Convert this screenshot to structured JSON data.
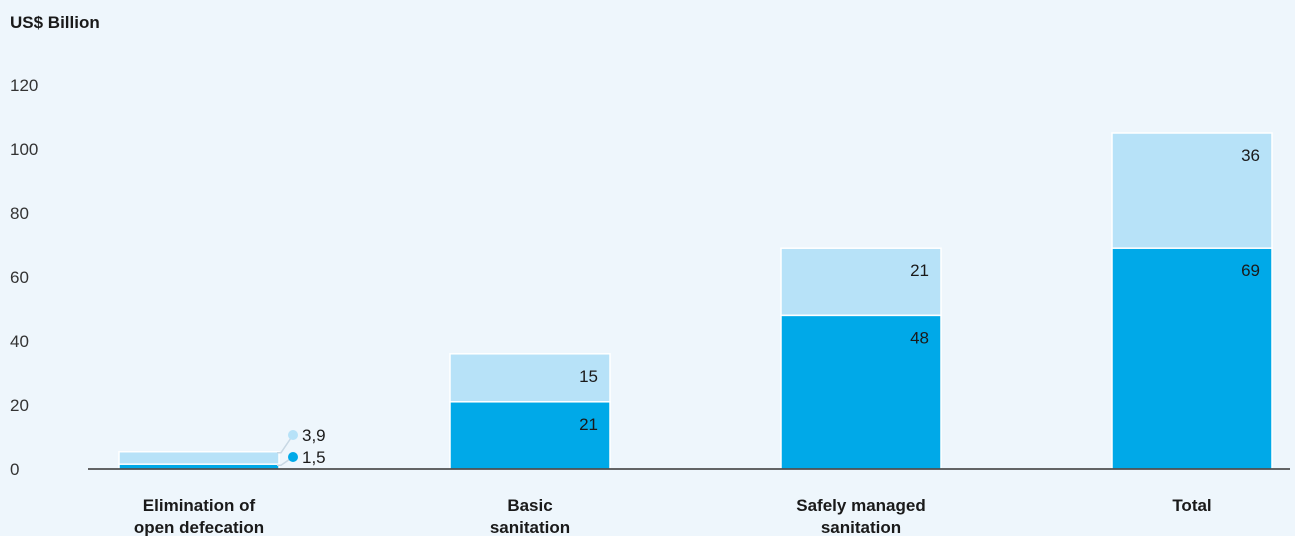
{
  "chart_data": {
    "type": "bar",
    "stacked": true,
    "unit_label": "US$ Billion",
    "categories": [
      [
        "Elimination of",
        "open defecation"
      ],
      [
        "Basic",
        "sanitation"
      ],
      [
        "Safely managed",
        "sanitation"
      ],
      [
        "Total"
      ]
    ],
    "series": [
      {
        "value_labels": [
          "1,5",
          "21",
          "48",
          "69"
        ],
        "values": [
          1.5,
          21,
          48,
          69
        ],
        "color": "#00a9e8"
      },
      {
        "value_labels": [
          "3,9",
          "15",
          "21",
          "36"
        ],
        "values": [
          3.9,
          15,
          21,
          36
        ],
        "color": "#b7e2f8"
      }
    ],
    "yticks": [
      "0",
      "20",
      "40",
      "60",
      "80",
      "100",
      "120"
    ],
    "ylim": [
      0,
      120
    ],
    "grid": false,
    "colors": {
      "background": "#eef6fc",
      "axis": "#333333",
      "outline": "#ffffff",
      "callout_dark": "#00a9e8",
      "callout_light": "#b7e2f8",
      "callout_line": "#c8d8e4"
    }
  }
}
